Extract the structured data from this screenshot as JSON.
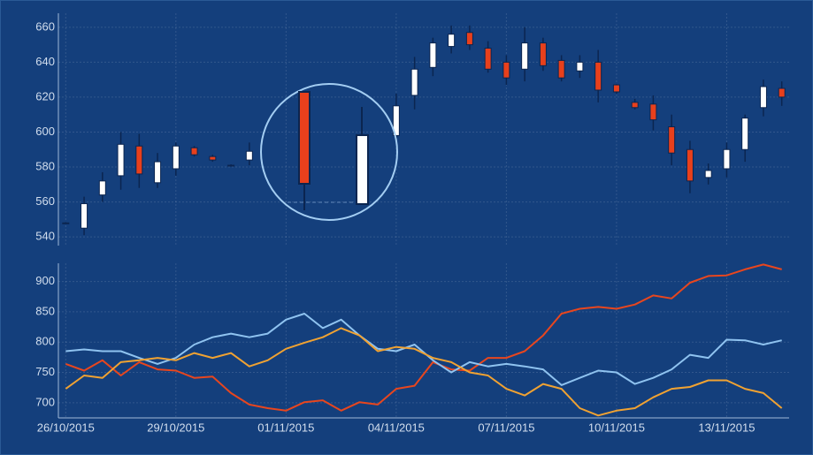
{
  "chart_data": [
    {
      "type": "candlestick",
      "x": [
        0,
        0.5,
        1,
        1.5,
        2,
        2.5,
        3,
        3.5,
        4,
        4.5,
        5,
        9,
        9.5,
        10,
        10.5,
        11,
        11.5,
        12,
        12.5,
        13,
        13.5,
        14,
        14.5,
        15,
        15.5,
        16,
        16.5,
        17,
        17.5,
        18,
        18.5,
        19,
        19.5
      ],
      "open": [
        548,
        545,
        564,
        575,
        592,
        571,
        579,
        591,
        586,
        581,
        584,
        598,
        621,
        637,
        649,
        657,
        648,
        640,
        636,
        651,
        641,
        635,
        640,
        627,
        617,
        616,
        603,
        590,
        574,
        579,
        590,
        614,
        625
      ],
      "high": [
        548.5,
        563,
        577,
        600,
        599,
        588,
        594,
        592,
        587,
        581.5,
        594,
        622,
        643,
        654,
        661,
        661,
        652,
        644,
        660,
        654,
        644,
        644,
        647,
        627.5,
        619,
        621,
        610,
        595,
        582,
        594,
        610,
        630,
        629
      ],
      "low": [
        547.5,
        541,
        560,
        567,
        568,
        568,
        575,
        586,
        583,
        580.5,
        581,
        594,
        613,
        632,
        645,
        647,
        634,
        627,
        629,
        635,
        629,
        631,
        617,
        622,
        613,
        601,
        581,
        565,
        570,
        574,
        583,
        609,
        615
      ],
      "close": [
        548,
        559,
        572,
        593,
        576,
        583,
        592,
        587,
        584,
        581,
        589,
        615,
        636,
        651,
        656,
        650,
        636,
        631,
        651,
        638,
        631,
        640,
        624,
        623,
        614,
        607,
        588,
        572,
        578,
        590,
        608,
        626,
        620
      ],
      "up_color": "#ffffff",
      "down_color": "#e8401c",
      "xlim": [
        -0.2,
        19.7
      ],
      "ylim": [
        535,
        668
      ],
      "yticks": [
        540,
        560,
        580,
        600,
        620,
        640,
        660
      ],
      "grid": true
    },
    {
      "type": "line",
      "x": [
        0,
        0.5,
        1,
        1.5,
        2,
        2.5,
        3,
        3.5,
        4,
        4.5,
        5,
        5.5,
        6,
        6.5,
        7,
        7.5,
        8,
        8.5,
        9,
        9.5,
        10,
        10.5,
        11,
        11.5,
        12,
        12.5,
        13,
        13.5,
        14,
        14.5,
        15,
        15.5,
        16,
        16.5,
        17,
        17.5,
        18,
        18.5,
        19,
        19.5
      ],
      "series": [
        {
          "color": "#e8461e",
          "values": [
            764,
            753,
            770,
            745,
            767,
            755,
            753,
            741,
            743,
            716,
            697,
            691,
            687,
            701,
            704,
            687,
            701,
            697,
            723,
            728,
            767,
            755,
            753,
            774,
            774,
            785,
            811,
            847,
            855,
            858,
            855,
            862,
            877,
            872,
            898,
            909,
            910,
            920,
            928,
            920
          ]
        },
        {
          "color": "#8fc3f0",
          "values": [
            785,
            788,
            785,
            785,
            774,
            764,
            774,
            796,
            808,
            814,
            808,
            814,
            837,
            847,
            823,
            837,
            811,
            789,
            785,
            796,
            770,
            750,
            767,
            760,
            764,
            760,
            755,
            729,
            741,
            753,
            750,
            731,
            741,
            755,
            779,
            774,
            804,
            803,
            796,
            803
          ]
        },
        {
          "color": "#f0a232",
          "values": [
            723,
            745,
            741,
            767,
            770,
            774,
            770,
            782,
            774,
            782,
            760,
            770,
            789,
            799,
            808,
            823,
            811,
            785,
            792,
            789,
            774,
            767,
            750,
            745,
            723,
            712,
            731,
            723,
            691,
            679,
            687,
            691,
            709,
            723,
            726,
            737,
            737,
            723,
            716,
            691
          ]
        }
      ],
      "xlim": [
        -0.2,
        19.7
      ],
      "ylim": [
        675,
        930
      ],
      "yticks": [
        700,
        750,
        800,
        850,
        900
      ],
      "xticks": [
        {
          "value": 0,
          "label": "26/10/2015"
        },
        {
          "value": 3,
          "label": "29/10/2015"
        },
        {
          "value": 6,
          "label": "01/11/2015"
        },
        {
          "value": 9,
          "label": "04/11/2015"
        },
        {
          "value": 12,
          "label": "07/11/2015"
        },
        {
          "value": 15,
          "label": "10/11/2015"
        },
        {
          "value": 18,
          "label": "13/11/2015"
        }
      ],
      "grid": true
    }
  ]
}
